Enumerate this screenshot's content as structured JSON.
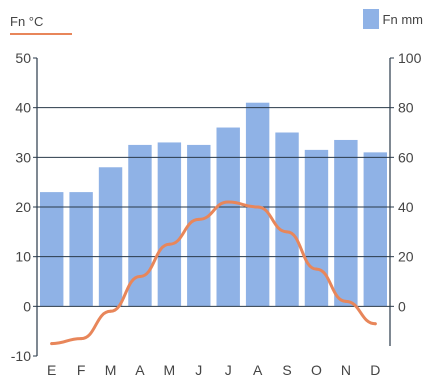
{
  "chart_data": {
    "type": "bar",
    "categories": [
      "E",
      "F",
      "M",
      "A",
      "M",
      "J",
      "J",
      "A",
      "S",
      "O",
      "N",
      "D"
    ],
    "series": [
      {
        "name": "Fn mm",
        "type": "bar",
        "axis": "right",
        "values": [
          46,
          46,
          56,
          65,
          66,
          65,
          72,
          82,
          70,
          63,
          67,
          62
        ],
        "color": "#8fb2e6"
      },
      {
        "type": "line",
        "axis": "left",
        "values": [
          -7.5,
          -6.5,
          -1,
          6,
          12.5,
          17.5,
          21,
          20,
          15,
          7.5,
          1,
          -3.5
        ],
        "color": "#e8865a"
      }
    ],
    "y_left": {
      "label": "Fn °C",
      "ylim": [
        -10,
        50
      ],
      "ticks": [
        "50",
        "40",
        "30",
        "20",
        "10",
        "0",
        "-10"
      ]
    },
    "y_right": {
      "label": "Fn mm",
      "ylim": [
        0,
        100
      ],
      "ticks": [
        "100",
        "80",
        "60",
        "40",
        "20",
        "0"
      ]
    },
    "grid": true,
    "legend": "top-right"
  }
}
